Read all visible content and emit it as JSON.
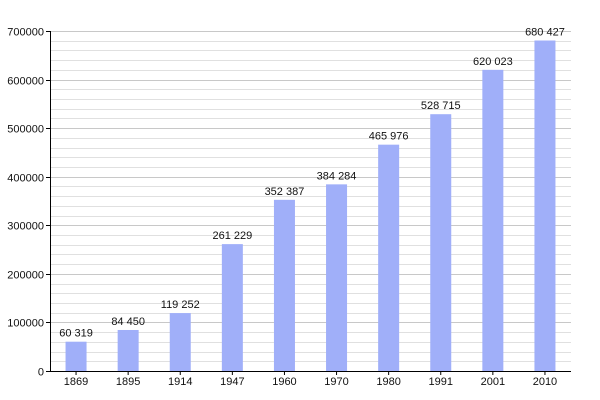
{
  "chart_data": {
    "type": "bar",
    "title": "",
    "xlabel": "",
    "ylabel": "",
    "categories": [
      "1869",
      "1895",
      "1914",
      "1947",
      "1960",
      "1970",
      "1980",
      "1991",
      "2001",
      "2010"
    ],
    "values": [
      60319,
      84450,
      119252,
      261229,
      352387,
      384284,
      465976,
      528715,
      620023,
      680427
    ],
    "value_labels": [
      "60 319",
      "84 450",
      "119 252",
      "261 229",
      "352 387",
      "384 284",
      "465 976",
      "528 715",
      "620 023",
      "680 427"
    ],
    "ylim": [
      0,
      700000
    ],
    "yticks": [
      0,
      100000,
      200000,
      300000,
      400000,
      500000,
      600000,
      700000
    ],
    "ytick_labels": [
      "0",
      "100000",
      "200000",
      "300000",
      "400000",
      "500000",
      "600000",
      "700000"
    ],
    "minor_step": 20000,
    "grid": true,
    "legend": "none",
    "colors": {
      "bar": "#a0aff9",
      "grid": "#c8c8c8",
      "axis": "#000000",
      "background": "#ffffff"
    }
  }
}
